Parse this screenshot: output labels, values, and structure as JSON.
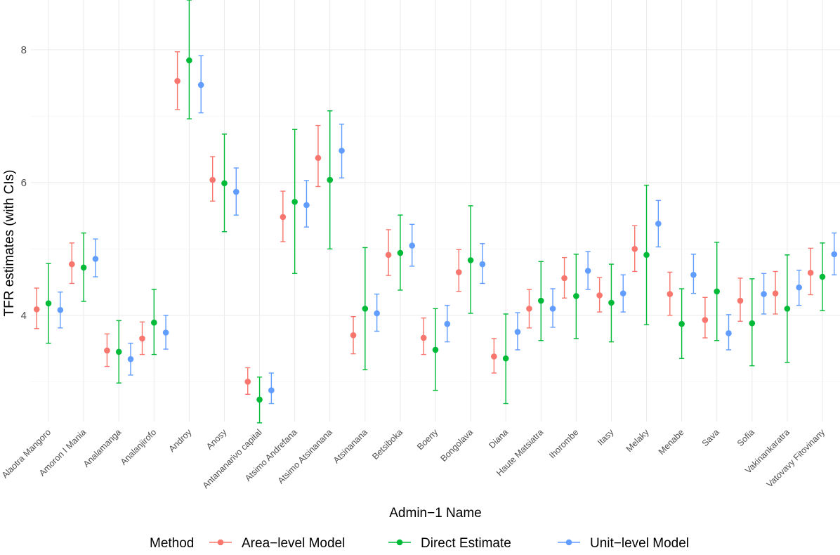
{
  "chart_data": {
    "type": "pointrange",
    "title": "",
    "xlabel": "Admin−1 Name",
    "ylabel": "TFR estimates (with CIs)",
    "ylim": [
      2.4,
      8.75
    ],
    "yticks": [
      4,
      6,
      8
    ],
    "grid": true,
    "legend": {
      "title": "Method",
      "placement": "bottom"
    },
    "categories": [
      "Alaotra Mangoro",
      "Amoron I Mania",
      "Analamanga",
      "Analanjirofo",
      "Androy",
      "Anosy",
      "Antananarivo capital",
      "Atsimo Andrefana",
      "Atsimo Atsinanana",
      "Atsinanana",
      "Betsiboka",
      "Boeny",
      "Bongolava",
      "Diana",
      "Haute Matsiatra",
      "Ihorombe",
      "Itasy",
      "Melaky",
      "Menabe",
      "Sava",
      "Sofia",
      "Vakinankaratra",
      "Vatovavy Fitovinany"
    ],
    "series": [
      {
        "name": "Area−level Model",
        "color": "#F8766D",
        "values": [
          4.09,
          4.77,
          3.47,
          3.65,
          7.53,
          6.04,
          3.0,
          5.48,
          6.37,
          3.7,
          4.91,
          3.66,
          4.65,
          3.38,
          4.1,
          4.56,
          4.3,
          5.0,
          4.32,
          3.93,
          4.22,
          4.33,
          4.64
        ],
        "lower": [
          3.8,
          4.48,
          3.23,
          3.41,
          7.1,
          5.72,
          2.81,
          5.11,
          5.94,
          3.42,
          4.6,
          3.41,
          4.36,
          3.13,
          3.81,
          4.26,
          4.05,
          4.66,
          4.0,
          3.66,
          3.91,
          4.02,
          4.31
        ],
        "upper": [
          4.41,
          5.09,
          3.72,
          3.9,
          7.97,
          6.39,
          3.21,
          5.87,
          6.86,
          3.98,
          5.29,
          3.96,
          4.99,
          3.65,
          4.39,
          4.87,
          4.57,
          5.35,
          4.65,
          4.27,
          4.56,
          4.66,
          5.01
        ]
      },
      {
        "name": "Direct Estimate",
        "color": "#00BA38",
        "values": [
          4.18,
          4.72,
          3.45,
          3.89,
          7.84,
          5.99,
          2.73,
          5.71,
          6.04,
          4.1,
          4.94,
          3.48,
          4.83,
          3.35,
          4.22,
          4.29,
          4.19,
          4.91,
          3.87,
          4.36,
          3.88,
          4.1,
          4.58
        ],
        "lower": [
          3.58,
          4.21,
          2.98,
          3.41,
          6.96,
          5.26,
          2.38,
          4.63,
          5.0,
          3.18,
          4.38,
          2.87,
          4.03,
          2.67,
          3.62,
          3.65,
          3.6,
          3.86,
          3.35,
          3.62,
          3.24,
          3.29,
          4.07
        ],
        "upper": [
          4.78,
          5.24,
          3.92,
          4.39,
          8.75,
          6.73,
          3.07,
          6.8,
          7.08,
          5.02,
          5.51,
          4.1,
          5.65,
          4.02,
          4.81,
          4.92,
          4.77,
          5.96,
          4.4,
          5.1,
          4.55,
          4.91,
          5.09
        ]
      },
      {
        "name": "Unit−level Model",
        "color": "#619CFF",
        "values": [
          4.08,
          4.85,
          3.34,
          3.74,
          7.47,
          5.86,
          2.87,
          5.66,
          6.48,
          4.03,
          5.05,
          3.87,
          4.77,
          3.75,
          4.1,
          4.67,
          4.33,
          5.38,
          4.61,
          3.73,
          4.32,
          4.42,
          4.92
        ],
        "lower": [
          3.81,
          4.58,
          3.1,
          3.49,
          7.05,
          5.51,
          2.67,
          5.33,
          6.07,
          3.76,
          4.74,
          3.6,
          4.48,
          3.48,
          3.82,
          4.39,
          4.05,
          5.03,
          4.33,
          3.48,
          4.02,
          4.15,
          4.61
        ],
        "upper": [
          4.35,
          5.15,
          3.58,
          4.0,
          7.91,
          6.22,
          3.13,
          6.03,
          6.88,
          4.32,
          5.37,
          4.15,
          5.08,
          4.04,
          4.4,
          4.96,
          4.61,
          5.73,
          4.92,
          4.01,
          4.63,
          4.68,
          5.24
        ]
      }
    ]
  }
}
